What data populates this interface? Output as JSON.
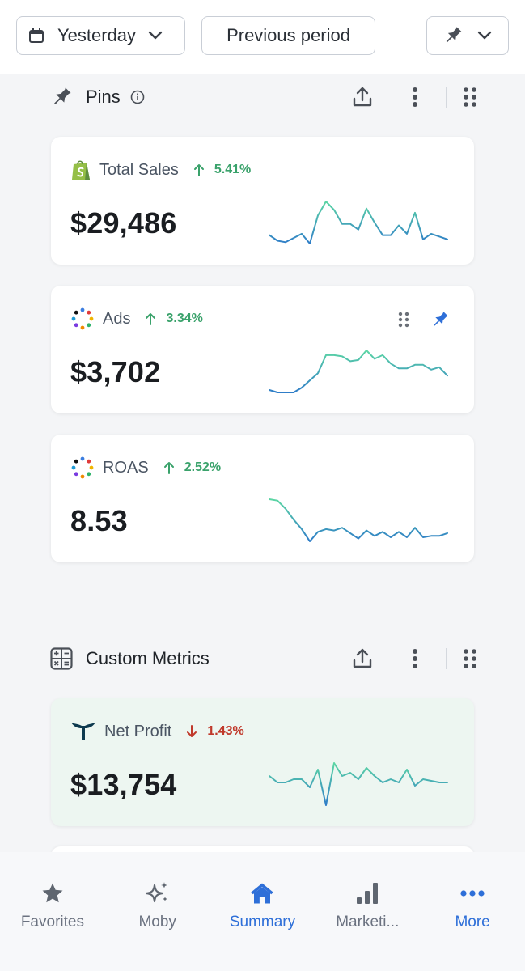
{
  "topbar": {
    "date_range": "Yesterday",
    "compare": "Previous period"
  },
  "pins": {
    "title": "Pins",
    "cards": [
      {
        "name": "Total Sales",
        "delta": "5.41%",
        "direction": "up",
        "value": "$29,486",
        "source": "shopify-icon",
        "trend": [
          30,
          26,
          25,
          28,
          31,
          24,
          44,
          54,
          48,
          38,
          38,
          34,
          49,
          39,
          30,
          30,
          37,
          31,
          46,
          27,
          31,
          29,
          27
        ]
      },
      {
        "name": "Ads",
        "delta": "3.34%",
        "direction": "up",
        "value": "$3,702",
        "source": "ads-dots-icon",
        "trend": [
          24,
          22,
          22,
          22,
          26,
          32,
          38,
          53,
          53,
          52,
          48,
          49,
          57,
          50,
          53,
          46,
          42,
          42,
          45,
          45,
          41,
          43,
          36
        ]
      },
      {
        "name": "ROAS",
        "delta": "2.52%",
        "direction": "up",
        "value": "8.53",
        "source": "ads-dots-icon",
        "trend": [
          55,
          54,
          48,
          40,
          33,
          24,
          31,
          33,
          32,
          34,
          30,
          26,
          32,
          28,
          31,
          27,
          31,
          27,
          34,
          27,
          28,
          28,
          30
        ]
      }
    ]
  },
  "custom_metrics": {
    "title": "Custom Metrics",
    "cards": [
      {
        "name": "Net Profit",
        "delta": "1.43%",
        "direction": "down",
        "value": "$13,754",
        "source": "triple-whale-icon",
        "trend": [
          40,
          36,
          36,
          38,
          38,
          33,
          44,
          22,
          48,
          40,
          42,
          38,
          45,
          40,
          36,
          38,
          36,
          44,
          34,
          38,
          37,
          36,
          36
        ]
      }
    ]
  },
  "nav": [
    {
      "label": "Favorites",
      "icon": "star-icon"
    },
    {
      "label": "Moby",
      "icon": "sparkles-icon"
    },
    {
      "label": "Summary",
      "icon": "home-icon"
    },
    {
      "label": "Marketi...",
      "icon": "bar-chart-icon"
    },
    {
      "label": "More",
      "icon": "more-dots-icon"
    }
  ],
  "colors": {
    "accent": "#2e6fd8",
    "up": "#3aa26b",
    "down": "#c0392b",
    "spark_start": "#5cd6a4",
    "spark_end": "#2f7dc8",
    "shopify": "#95bf47"
  }
}
